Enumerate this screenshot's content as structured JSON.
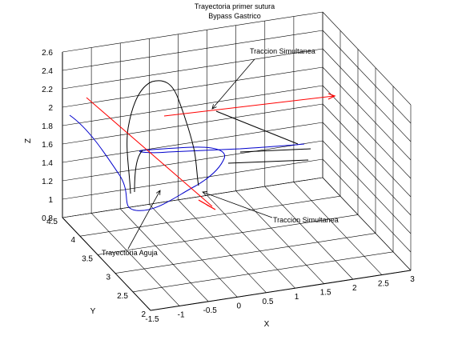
{
  "chart_data": {
    "type": "line3d",
    "title_lines": [
      "Trayectoria primer sutura",
      "Bypass  Gastrico"
    ],
    "xlabel": "X",
    "ylabel": "Y",
    "zlabel": "Z",
    "x_ticks": [
      "-1.5",
      "-1",
      "-0.5",
      "0",
      "0.5",
      "1",
      "1.5",
      "2",
      "2.5",
      "3"
    ],
    "y_ticks": [
      "2",
      "2.5",
      "3",
      "3.5",
      "4",
      "4.5"
    ],
    "z_ticks": [
      "0.8",
      "1",
      "1.2",
      "1.4",
      "1.6",
      "1.8",
      "2",
      "2.2",
      "2.4",
      "2.6"
    ],
    "xlim": [
      -1.5,
      3
    ],
    "ylim": [
      2,
      4.5
    ],
    "zlim": [
      0.8,
      2.6
    ],
    "grid": true,
    "annotations": [
      {
        "text": "Traccion Simultanea"
      },
      {
        "text": "Traccion Simultanea"
      },
      {
        "text": "Trayectoria Aguja"
      }
    ],
    "series": [
      {
        "color": "#0000cc"
      },
      {
        "color": "#000000"
      },
      {
        "color": "#ff0000"
      },
      {
        "color": "#000000"
      }
    ]
  }
}
